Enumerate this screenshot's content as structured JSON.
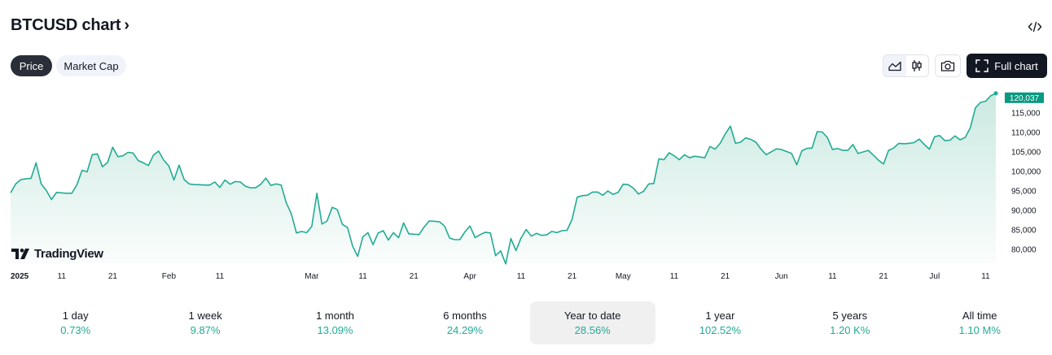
{
  "header": {
    "title": "BTCUSD chart",
    "chevron": "›",
    "embed_icon": "code-icon"
  },
  "tabs": [
    {
      "label": "Price",
      "active": true
    },
    {
      "label": "Market Cap",
      "active": false
    }
  ],
  "toolbar": {
    "area_icon": "area-chart-icon",
    "candle_icon": "candlestick-icon",
    "camera_icon": "camera-icon",
    "full_chart_label": "Full chart",
    "full_chart_icon": "fullscreen-icon"
  },
  "colors": {
    "line": "#22ab94",
    "fill_top": "#c8e8df",
    "label_bg": "#089981",
    "positive": "#22ab94"
  },
  "watermark": {
    "text": "TradingView"
  },
  "chart_data": {
    "type": "area",
    "series": [
      {
        "values": [
          94500,
          96800,
          97900,
          98100,
          98200,
          102200,
          96800,
          95100,
          92800,
          94600,
          94500,
          94400,
          94400,
          96600,
          100300,
          99900,
          104300,
          104500,
          101200,
          102300,
          106200,
          103800,
          104000,
          104900,
          104700,
          102800,
          102200,
          101500,
          104200,
          105200,
          102900,
          101400,
          97800,
          101600,
          97900,
          96800,
          96600,
          96600,
          96500,
          96500,
          97300,
          95900,
          97800,
          96700,
          97400,
          97300,
          96200,
          95800,
          95800,
          96700,
          98300,
          96400,
          96800,
          96500,
          92000,
          89100,
          84200,
          84600,
          84300,
          85900,
          94400,
          86500,
          87300,
          90800,
          90200,
          86400,
          85600,
          80800,
          78200,
          83200,
          84300,
          81200,
          84200,
          84800,
          82400,
          84300,
          83000,
          86800,
          84000,
          83900,
          83800,
          85700,
          87300,
          87200,
          87100,
          86000,
          82900,
          82500,
          82500,
          84500,
          86000,
          83000,
          83800,
          84400,
          84200,
          78400,
          79600,
          76300,
          82800,
          79700,
          82900,
          85100,
          83400,
          84100,
          83600,
          83700,
          84600,
          84300,
          84800,
          84900,
          87700,
          93400,
          93800,
          93900,
          94700,
          94700,
          93900,
          95000,
          94100,
          94600,
          96700,
          96600,
          95700,
          94200,
          94900,
          96800,
          96900,
          103200,
          103000,
          104800,
          104000,
          103000,
          104300,
          103500,
          103900,
          103700,
          103500,
          106400,
          105700,
          107200,
          109600,
          111600,
          107200,
          107500,
          108600,
          108200,
          107500,
          105700,
          104300,
          105000,
          105800,
          105600,
          105100,
          104600,
          101700,
          105300,
          105900,
          106000,
          110200,
          110100,
          108700,
          105600,
          105900,
          105400,
          105400,
          106900,
          104600,
          105000,
          105400,
          104200,
          102900,
          101900,
          105400,
          106000,
          107200,
          107100,
          107200,
          107400,
          108300,
          106900,
          105700,
          108900,
          109200,
          107900,
          108000,
          109100,
          108100,
          108700,
          111200,
          116300,
          117700,
          118000,
          119400,
          120037
        ],
        "last_value_label": "120,037"
      }
    ],
    "x_tick_labels": [
      {
        "label": "2025",
        "index": 0,
        "bold": true
      },
      {
        "label": "11",
        "index": 10
      },
      {
        "label": "21",
        "index": 20
      },
      {
        "label": "Feb",
        "index": 31
      },
      {
        "label": "11",
        "index": 41
      },
      {
        "label": "Mar",
        "index": 59
      },
      {
        "label": "11",
        "index": 69
      },
      {
        "label": "21",
        "index": 79
      },
      {
        "label": "Apr",
        "index": 90
      },
      {
        "label": "11",
        "index": 100
      },
      {
        "label": "21",
        "index": 110
      },
      {
        "label": "May",
        "index": 120
      },
      {
        "label": "11",
        "index": 130
      },
      {
        "label": "21",
        "index": 140
      },
      {
        "label": "Jun",
        "index": 151
      },
      {
        "label": "11",
        "index": 161
      },
      {
        "label": "21",
        "index": 171
      },
      {
        "label": "Jul",
        "index": 181
      },
      {
        "label": "11",
        "index": 191
      }
    ],
    "y_ticks": [
      {
        "value": 115000,
        "label": "115,000"
      },
      {
        "value": 110000,
        "label": "110,000"
      },
      {
        "value": 105000,
        "label": "105,000"
      },
      {
        "value": 100000,
        "label": "100,000"
      },
      {
        "value": 95000,
        "label": "95,000"
      },
      {
        "value": 90000,
        "label": "90,000"
      },
      {
        "value": 85000,
        "label": "85,000"
      },
      {
        "value": 80000,
        "label": "80,000"
      }
    ],
    "grid": false,
    "y_axis_side": "right"
  },
  "periods": [
    {
      "label": "1 day",
      "change": "0.73%",
      "active": false
    },
    {
      "label": "1 week",
      "change": "9.87%",
      "active": false
    },
    {
      "label": "1 month",
      "change": "13.09%",
      "active": false
    },
    {
      "label": "6 months",
      "change": "24.29%",
      "active": false
    },
    {
      "label": "Year to date",
      "change": "28.56%",
      "active": true
    },
    {
      "label": "1 year",
      "change": "102.52%",
      "active": false
    },
    {
      "label": "5 years",
      "change": "1.20 K%",
      "active": false
    },
    {
      "label": "All time",
      "change": "1.10 M%",
      "active": false
    }
  ]
}
